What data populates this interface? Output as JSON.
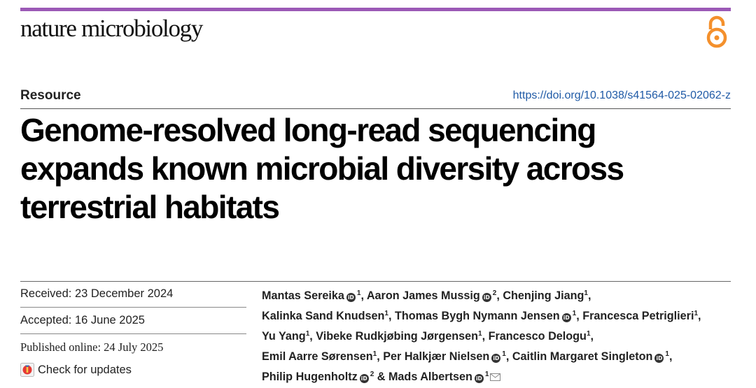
{
  "journal": {
    "name": "nature microbiology"
  },
  "article": {
    "type": "Resource",
    "doi": "https://doi.org/10.1038/s41564-025-02062-z",
    "title_lines": [
      "Genome-resolved long-read sequencing",
      "expands known microbial diversity across",
      "terrestrial habitats"
    ]
  },
  "dates": {
    "received": "Received: 23 December 2024",
    "accepted": "Accepted: 16 June 2025",
    "published": "Published online: 24 July 2025",
    "check_updates": "Check for updates"
  },
  "authors": [
    {
      "name": "Mantas Sereika",
      "orcid": true,
      "aff": "1"
    },
    {
      "name": "Aaron James Mussig",
      "orcid": true,
      "aff": "2"
    },
    {
      "name": "Chenjing Jiang",
      "orcid": false,
      "aff": "1"
    },
    {
      "name": "Kalinka Sand Knudsen",
      "orcid": false,
      "aff": "1"
    },
    {
      "name": "Thomas Bygh Nymann Jensen",
      "orcid": true,
      "aff": "1"
    },
    {
      "name": "Francesca Petriglieri",
      "orcid": false,
      "aff": "1"
    },
    {
      "name": "Yu Yang",
      "orcid": false,
      "aff": "1"
    },
    {
      "name": "Vibeke Rudkjøbing Jørgensen",
      "orcid": false,
      "aff": "1"
    },
    {
      "name": "Francesco Delogu",
      "orcid": false,
      "aff": "1"
    },
    {
      "name": "Emil Aarre Sørensen",
      "orcid": false,
      "aff": "1"
    },
    {
      "name": "Per Halkjær Nielsen",
      "orcid": true,
      "aff": "1"
    },
    {
      "name": "Caitlin Margaret Singleton",
      "orcid": true,
      "aff": "1"
    },
    {
      "name": "Philip Hugenholtz",
      "orcid": true,
      "aff": "2"
    },
    {
      "name": "Mads Albertsen",
      "orcid": true,
      "aff": "1",
      "corresponding": true
    }
  ],
  "author_lines": [
    [
      0,
      1,
      2
    ],
    [
      3,
      4,
      5
    ],
    [
      6,
      7,
      8
    ],
    [
      9,
      10,
      11
    ],
    [
      12,
      13
    ]
  ],
  "colors": {
    "accent_bar": "#9b59b6",
    "open_access": "#f4902c",
    "doi_link": "#1f5aa6"
  }
}
